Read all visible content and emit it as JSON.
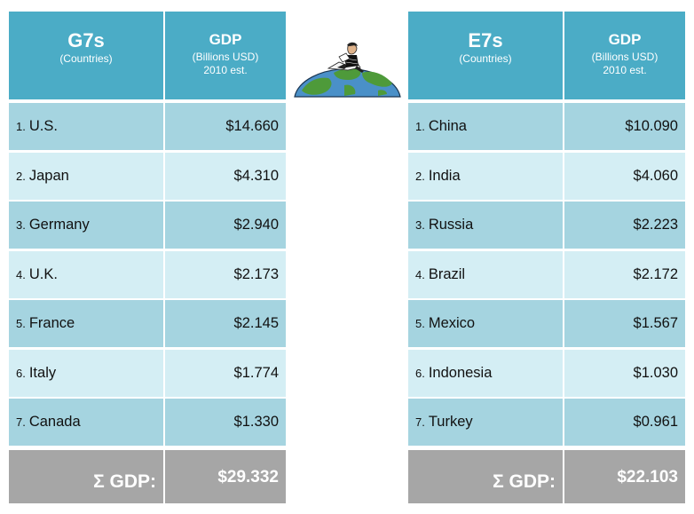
{
  "chart_data": [
    {
      "type": "table",
      "title": "G7s",
      "subtitle": "(Countries)",
      "value_header": "GDP",
      "value_subheader_1": "(Billions USD)",
      "value_subheader_2": "2010 est.",
      "rows": [
        {
          "rank": "1.",
          "country": "U.S.",
          "gdp": "$14.660"
        },
        {
          "rank": "2.",
          "country": "Japan",
          "gdp": "$4.310"
        },
        {
          "rank": "3.",
          "country": "Germany",
          "gdp": "$2.940"
        },
        {
          "rank": "4.",
          "country": "U.K.",
          "gdp": "$2.173"
        },
        {
          "rank": "5.",
          "country": "France",
          "gdp": "$2.145"
        },
        {
          "rank": "6.",
          "country": "Italy",
          "gdp": "$1.774"
        },
        {
          "rank": "7.",
          "country": "Canada",
          "gdp": "$1.330"
        }
      ],
      "total_label": "Σ GDP:",
      "total_value": "$29.332"
    },
    {
      "type": "table",
      "title": "E7s",
      "subtitle": "(Countries)",
      "value_header": "GDP",
      "value_subheader_1": "(Billions USD)",
      "value_subheader_2": "2010 est.",
      "rows": [
        {
          "rank": "1.",
          "country": "China",
          "gdp": "$10.090"
        },
        {
          "rank": "2.",
          "country": "India",
          "gdp": "$4.060"
        },
        {
          "rank": "3.",
          "country": "Russia",
          "gdp": "$2.223"
        },
        {
          "rank": "4.",
          "country": "Brazil",
          "gdp": "$2.172"
        },
        {
          "rank": "5.",
          "country": "Mexico",
          "gdp": "$1.567"
        },
        {
          "rank": "6.",
          "country": "Indonesia",
          "gdp": "$1.030"
        },
        {
          "rank": "7.",
          "country": "Turkey",
          "gdp": "$0.961"
        }
      ],
      "total_label": "Σ GDP:",
      "total_value": "$22.103"
    }
  ],
  "colors": {
    "header": "#4bacc6",
    "row_dark": "#a5d4e0",
    "row_light": "#d4eef4",
    "total": "#a6a6a6",
    "ocean": "#4a90c8",
    "land": "#4e9a3a"
  },
  "illustration": "globe-with-reading-person-icon"
}
